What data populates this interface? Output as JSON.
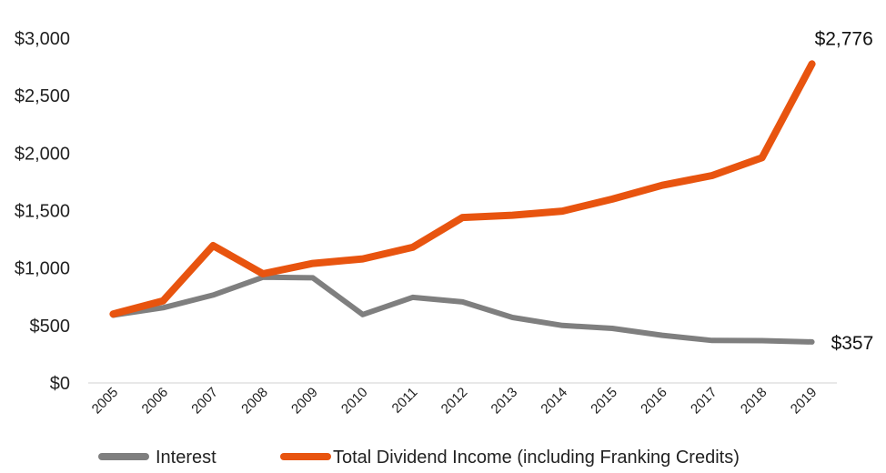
{
  "chart_data": {
    "type": "line",
    "title": "",
    "xlabel": "",
    "ylabel": "",
    "categories": [
      "2005",
      "2006",
      "2007",
      "2008",
      "2009",
      "2010",
      "2011",
      "2012",
      "2013",
      "2014",
      "2015",
      "2016",
      "2017",
      "2018",
      "2019"
    ],
    "ylim": [
      0,
      3000
    ],
    "y_ticks": [
      "$0",
      "$500",
      "$1,000",
      "$1,500",
      "$2,000",
      "$2,500",
      "$3,000"
    ],
    "y_tick_values": [
      0,
      500,
      1000,
      1500,
      2000,
      2500,
      3000
    ],
    "grid": false,
    "legend_position": "bottom",
    "series": [
      {
        "name": "Interest",
        "color": "#7f7f7f",
        "values": [
          590,
          655,
          765,
          920,
          915,
          595,
          745,
          705,
          570,
          500,
          475,
          415,
          370,
          368,
          357
        ],
        "end_label": "$357"
      },
      {
        "name": "Total Dividend Income (including Franking Credits)",
        "color": "#e8540f",
        "values": [
          600,
          715,
          1195,
          950,
          1040,
          1080,
          1180,
          1440,
          1460,
          1495,
          1600,
          1720,
          1805,
          1960,
          2776
        ],
        "end_label": "$2,776"
      }
    ]
  }
}
